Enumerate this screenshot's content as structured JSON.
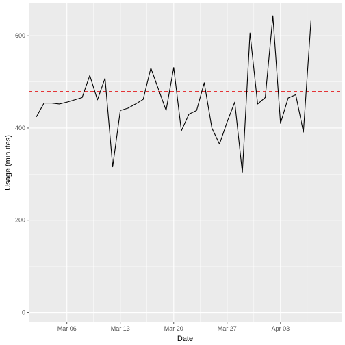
{
  "chart_data": {
    "type": "line",
    "title": "",
    "xlabel": "Date",
    "ylabel": "Usage (minutes)",
    "x_start": "2023-03-02",
    "x_end": "2023-04-10",
    "xlim": [
      "2023-03-01",
      "2023-04-11"
    ],
    "ylim": [
      -20,
      670
    ],
    "x_ticks": [
      {
        "date": "2023-03-06",
        "label": "Mar 06"
      },
      {
        "date": "2023-03-13",
        "label": "Mar 13"
      },
      {
        "date": "2023-03-20",
        "label": "Mar 20"
      },
      {
        "date": "2023-03-27",
        "label": "Mar 27"
      },
      {
        "date": "2023-04-03",
        "label": "Apr 03"
      }
    ],
    "y_ticks": [
      0,
      200,
      400,
      600
    ],
    "reference_line": {
      "value": 479,
      "color": "#e31a1c",
      "style": "dashed"
    },
    "line_color": "#000000",
    "panel_color": "#ebebeb",
    "grid": true,
    "series": [
      {
        "values": [
          424,
          454,
          454,
          452,
          456,
          461,
          466,
          514,
          461,
          508,
          316,
          438,
          443,
          452,
          462,
          530,
          484,
          438,
          531,
          394,
          430,
          438,
          498,
          400,
          365,
          413,
          456,
          303,
          606,
          452,
          466,
          643,
          410,
          465,
          472,
          391,
          634
        ]
      }
    ]
  }
}
